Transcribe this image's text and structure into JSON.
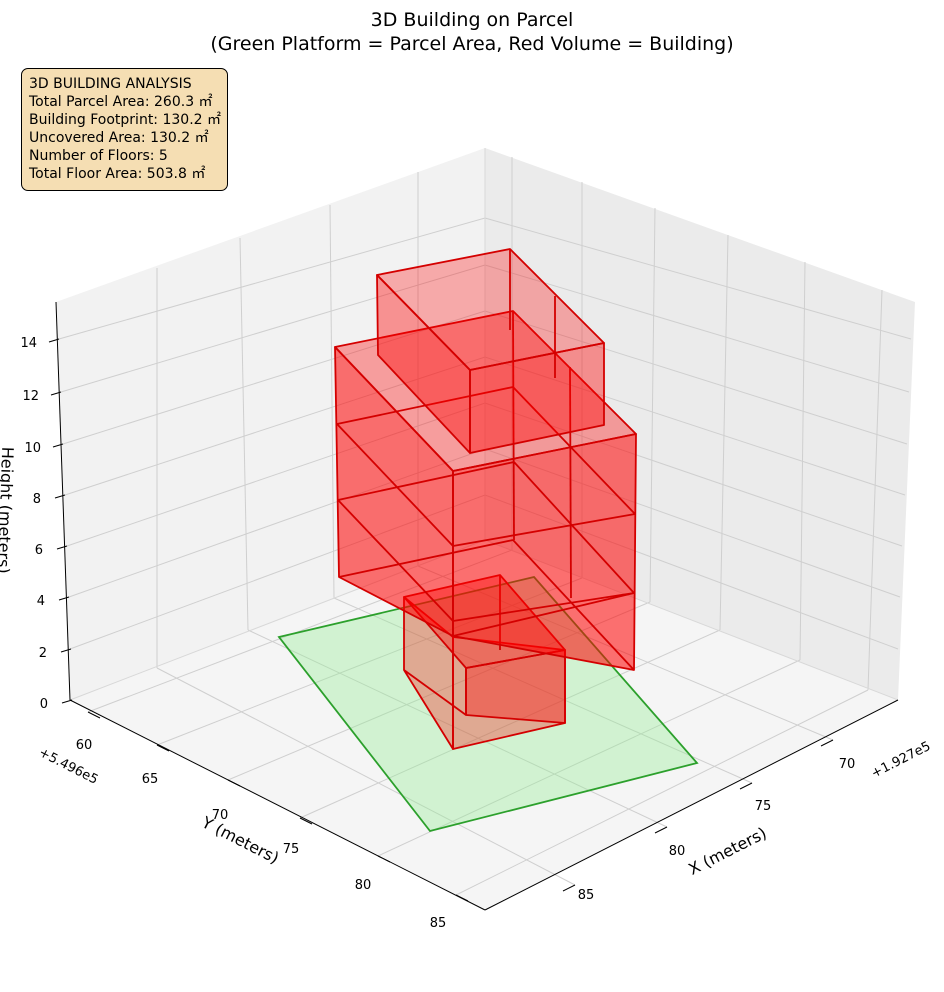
{
  "chart_data": {
    "type": "3d-volume",
    "title_line1": "3D Building on Parcel",
    "title_line2": "(Green Platform = Parcel Area, Red Volume = Building)",
    "xlabel": "X (meters)",
    "ylabel": "Y (meters)",
    "zlabel": "Height (meters)",
    "x_offset_label": "+1.927e5",
    "y_offset_label": "+5.496e5",
    "x_ticks": [
      "70",
      "75",
      "80",
      "85"
    ],
    "y_ticks": [
      "60",
      "65",
      "70",
      "75",
      "80",
      "85"
    ],
    "z_ticks": [
      "0",
      "2",
      "4",
      "6",
      "8",
      "10",
      "12",
      "14"
    ],
    "grid": true,
    "parcel_color": "#2ca02c",
    "parcel_fill": "#90ee90",
    "building_color": "#ff0000",
    "building_edge": "#d40000"
  },
  "info_box": {
    "line1": "3D BUILDING ANALYSIS",
    "line2": "Total Parcel Area: 260.3 ㎡",
    "line3": "Building Footprint: 130.2 ㎡",
    "line4": "Uncovered Area: 130.2 ㎡",
    "line5": "Number of Floors: 5",
    "line6": "Total Floor Area: 503.8 ㎡"
  }
}
